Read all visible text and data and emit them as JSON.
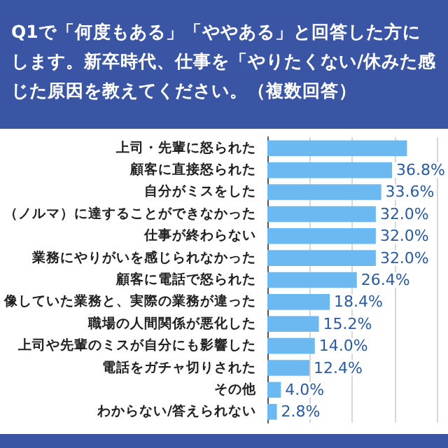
{
  "chart_data": {
    "type": "bar",
    "orientation": "horizontal",
    "title": "Q1で「何度もある」「ややある」と回答した方にします。新卒時代、仕事を「やりたくない/休みた感じた原因を教えてください。（複数回答）",
    "categories": [
      "上司・先輩に怒られた",
      "顧客に直接怒られた",
      "自分がミスをした",
      "（ノルマ）に達することができなかった",
      "仕事が終わらない",
      "業務にやりがいを感じられなかった",
      "顧客に電話で怒られた",
      "像していた業務と、実際の業務が違った",
      "職場の人間関係が悪化した",
      "上司や先輩のミスが自分にも影響した",
      "電話をガチャ切りされた",
      "その他",
      "わからない/答えられない"
    ],
    "values": [
      41.2,
      36.8,
      33.6,
      32.0,
      32.0,
      32.0,
      26.4,
      18.4,
      15.2,
      14.0,
      12.4,
      4.0,
      2.8
    ],
    "value_labels": [
      null,
      "36.8%",
      "33.6%",
      "32.0%",
      "32.0%",
      "32.0%",
      "26.4%",
      "18.4%",
      "15.2%",
      "14.0%",
      "12.4%",
      "4.0%",
      "2.8%"
    ],
    "color": "#6cb8f0",
    "xlim": [
      0,
      50
    ],
    "xticks": [
      {
        "value": 0,
        "label": null
      },
      {
        "value": 12.5,
        "label": null
      },
      {
        "value": 25,
        "label": null
      },
      {
        "value": 37.5,
        "label": null
      },
      {
        "value": 50,
        "label": null
      }
    ],
    "grid": "x"
  }
}
